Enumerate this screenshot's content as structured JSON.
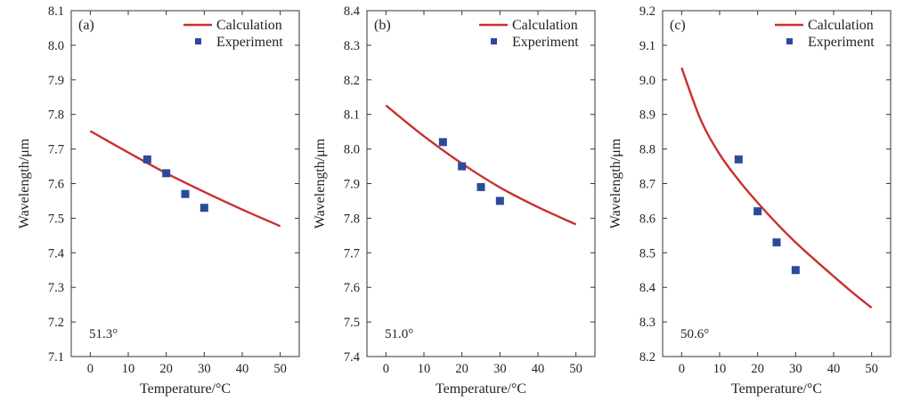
{
  "chart_data": [
    {
      "type": "line",
      "panel_label": "(a)",
      "annotation": "51.3°",
      "xlabel": "Temperature/°C",
      "ylabel": "Wavelength/μm",
      "xlim": [
        -5,
        55
      ],
      "ylim": [
        7.1,
        8.1
      ],
      "xticks": [
        "0",
        "10",
        "20",
        "30",
        "40",
        "50"
      ],
      "yticks": [
        "7.1",
        "7.2",
        "7.3",
        "7.4",
        "7.5",
        "7.6",
        "7.7",
        "7.8",
        "7.9",
        "8.0",
        "8.1"
      ],
      "legend": [
        "Calculation",
        "Experiment"
      ],
      "legend_position": "top-right",
      "series": [
        {
          "name": "Calculation",
          "kind": "line",
          "color": "#c8302f",
          "x": [
            0,
            10,
            20,
            30,
            40,
            50
          ],
          "y": [
            7.752,
            7.69,
            7.63,
            7.576,
            7.525,
            7.477
          ]
        },
        {
          "name": "Experiment",
          "kind": "scatter",
          "color": "#2b4a9a",
          "x": [
            15,
            20,
            25,
            30
          ],
          "y": [
            7.67,
            7.63,
            7.57,
            7.53
          ]
        }
      ]
    },
    {
      "type": "line",
      "panel_label": "(b)",
      "annotation": "51.0°",
      "xlabel": "Temperature/°C",
      "ylabel": "Wavelength/μm",
      "xlim": [
        -5,
        55
      ],
      "ylim": [
        7.4,
        8.4
      ],
      "xticks": [
        "0",
        "10",
        "20",
        "30",
        "40",
        "50"
      ],
      "yticks": [
        "7.4",
        "7.5",
        "7.6",
        "7.7",
        "7.8",
        "7.9",
        "8.0",
        "8.1",
        "8.2",
        "8.3",
        "8.4"
      ],
      "legend": [
        "Calculation",
        "Experiment"
      ],
      "legend_position": "top-right",
      "series": [
        {
          "name": "Calculation",
          "kind": "line",
          "color": "#c8302f",
          "x": [
            0,
            10,
            20,
            30,
            40,
            50
          ],
          "y": [
            8.126,
            8.037,
            7.958,
            7.889,
            7.832,
            7.782
          ]
        },
        {
          "name": "Experiment",
          "kind": "scatter",
          "color": "#2b4a9a",
          "x": [
            15,
            20,
            25,
            30
          ],
          "y": [
            8.02,
            7.95,
            7.89,
            7.85
          ]
        }
      ]
    },
    {
      "type": "line",
      "panel_label": "(c)",
      "annotation": "50.6°",
      "xlabel": "Temperature/°C",
      "ylabel": "Wavelength/μm",
      "xlim": [
        -5,
        55
      ],
      "ylim": [
        8.2,
        9.2
      ],
      "xticks": [
        "0",
        "10",
        "20",
        "30",
        "40",
        "50"
      ],
      "yticks": [
        "8.2",
        "8.3",
        "8.4",
        "8.5",
        "8.6",
        "8.7",
        "8.8",
        "8.9",
        "9.0",
        "9.1",
        "9.2"
      ],
      "legend": [
        "Calculation",
        "Experiment"
      ],
      "legend_position": "top-right",
      "series": [
        {
          "name": "Calculation",
          "kind": "line",
          "color": "#c8302f",
          "x": [
            0,
            5,
            10,
            15,
            20,
            25,
            30,
            35,
            40,
            45,
            50
          ],
          "y": [
            9.035,
            8.885,
            8.785,
            8.71,
            8.645,
            8.585,
            8.53,
            8.48,
            8.432,
            8.385,
            8.341
          ]
        },
        {
          "name": "Experiment",
          "kind": "scatter",
          "color": "#2b4a9a",
          "x": [
            15,
            20,
            25,
            30
          ],
          "y": [
            8.77,
            8.62,
            8.53,
            8.45
          ]
        }
      ]
    }
  ]
}
